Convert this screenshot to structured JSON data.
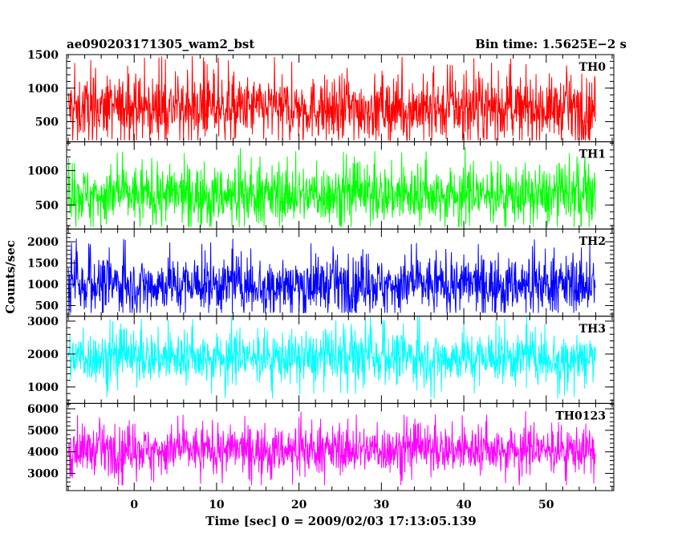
{
  "chart_data": {
    "type": "line",
    "title_left": "ae090203171305_wam2_bst",
    "title_right": "Bin time: 1.5625E−2 s",
    "xlabel": "Time [sec] 0 = 2009/02/03 17:13:05.139",
    "ylabel": "Counts/sec",
    "xlim": [
      -8.2,
      58.2
    ],
    "x_data_range": [
      -8,
      56
    ],
    "x_ticks": [
      0,
      10,
      20,
      30,
      40,
      50
    ],
    "x_minor_step": 2,
    "panels": [
      {
        "name": "TH0",
        "color": "#ff0000",
        "ylim": [
          200,
          1500
        ],
        "y_ticks": [
          500,
          1000,
          1500
        ],
        "y_minor_step": 100,
        "mean": 700,
        "spread": 300,
        "low": 220,
        "high": 1500
      },
      {
        "name": "TH1",
        "color": "#00ff00",
        "ylim": [
          150,
          1420
        ],
        "y_ticks": [
          500,
          1000
        ],
        "y_minor_step": 100,
        "mean": 650,
        "spread": 270,
        "low": 180,
        "high": 1400
      },
      {
        "name": "TH2",
        "color": "#0000ff",
        "ylim": [
          250,
          2300
        ],
        "y_ticks": [
          500,
          1000,
          1500,
          2000
        ],
        "y_minor_step": 100,
        "mean": 1000,
        "spread": 420,
        "low": 330,
        "high": 2200
      },
      {
        "name": "TH3",
        "color": "#00ffff",
        "ylim": [
          500,
          3150
        ],
        "y_ticks": [
          1000,
          2000,
          3000
        ],
        "y_minor_step": 200,
        "mean": 1900,
        "spread": 500,
        "low": 650,
        "high": 3150
      },
      {
        "name": "TH0123",
        "color": "#ff00ff",
        "ylim": [
          2200,
          6250
        ],
        "y_ticks": [
          3000,
          4000,
          5000,
          6000
        ],
        "y_minor_step": 200,
        "mean": 4100,
        "spread": 700,
        "low": 2450,
        "high": 6200
      }
    ]
  }
}
